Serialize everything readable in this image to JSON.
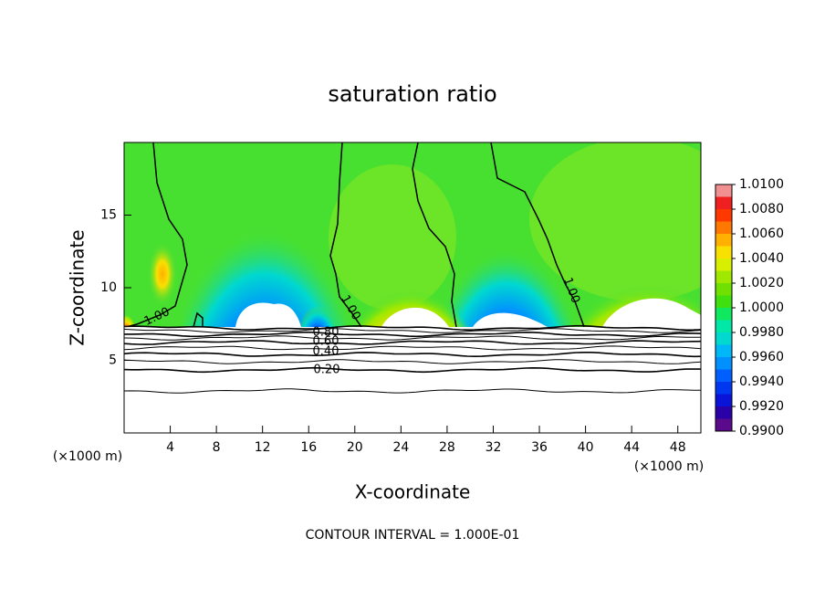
{
  "chart_data": {
    "type": "contour",
    "title": "saturation ratio",
    "x_label": "X-coordinate",
    "y_label": "Z-coordinate",
    "x_unit": "(×1000 m)",
    "footnote": "CONTOUR INTERVAL = 1.000E-01",
    "xlim": [
      0,
      50
    ],
    "ylim": [
      0,
      20
    ],
    "xticks": [
      4,
      8,
      12,
      16,
      20,
      24,
      28,
      32,
      36,
      40,
      44,
      48
    ],
    "yticks": [
      5,
      10,
      15
    ],
    "contour_labels": [
      "1.00",
      "1.00",
      "1.00",
      "0.80",
      "0.60",
      "0.40",
      "0.20"
    ],
    "colorbar": {
      "lim": [
        0.99,
        1.01
      ],
      "ticks": [
        {
          "value": 0.99,
          "label": "0.9900"
        },
        {
          "value": 0.992,
          "label": "0.9920"
        },
        {
          "value": 0.994,
          "label": "0.9940"
        },
        {
          "value": 0.996,
          "label": "0.9960"
        },
        {
          "value": 0.998,
          "label": "0.9980"
        },
        {
          "value": 1.0,
          "label": "1.0000"
        },
        {
          "value": 1.002,
          "label": "1.0020"
        },
        {
          "value": 1.004,
          "label": "1.0040"
        },
        {
          "value": 1.006,
          "label": "1.0060"
        },
        {
          "value": 1.008,
          "label": "1.0080"
        },
        {
          "value": 1.01,
          "label": "1.0100"
        }
      ],
      "colors": [
        "#5a0a8a",
        "#2a00a8",
        "#0a14d8",
        "#0038f0",
        "#0060ff",
        "#0090ff",
        "#00b8f8",
        "#00d8d0",
        "#00e8a8",
        "#10e860",
        "#40e010",
        "#70e000",
        "#a0e800",
        "#d8f000",
        "#f8e000",
        "#ffb000",
        "#ff7800",
        "#ff3800",
        "#f02020",
        "#f09090"
      ]
    }
  }
}
